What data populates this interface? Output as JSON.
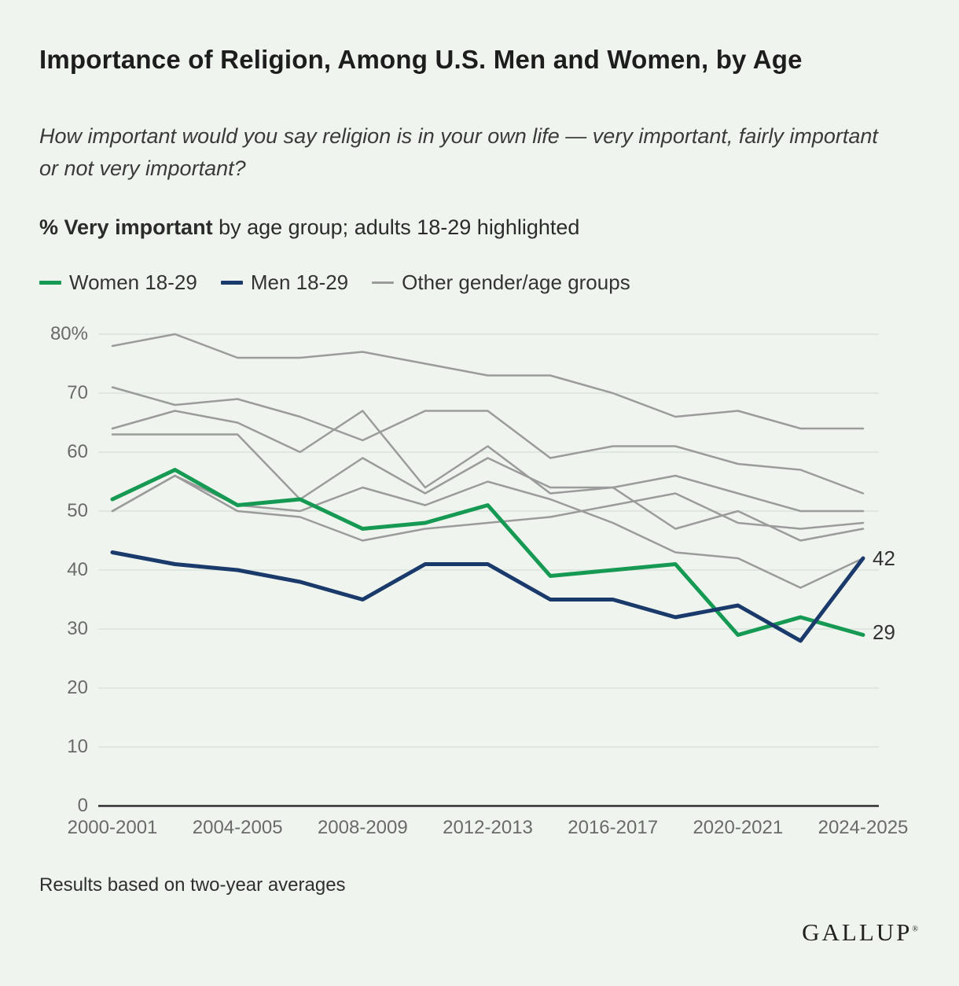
{
  "header": {
    "title": "Importance of Religion, Among U.S. Men and Women, by Age",
    "subtitle": "How important would you say religion is in your own life — very important, fairly important or not very important?",
    "section_label_bold": "% Very important",
    "section_label_rest": " by age group; adults 18-29 highlighted"
  },
  "legend": {
    "items": [
      {
        "label": "Women 18-29",
        "color": "#169a53",
        "thick": true
      },
      {
        "label": "Men 18-29",
        "color": "#1a3a6b",
        "thick": true
      },
      {
        "label": "Other gender/age groups",
        "color": "#9b9b9b",
        "thick": false
      }
    ]
  },
  "chart_data": {
    "type": "line",
    "x": [
      "2000-2001",
      "2002-2003",
      "2004-2005",
      "2006-2007",
      "2008-2009",
      "2010-2011",
      "2012-2013",
      "2014-2015",
      "2016-2017",
      "2018-2019",
      "2020-2021",
      "2022-2023",
      "2024-2025"
    ],
    "x_tick_labels_shown": [
      "2000-2001",
      "2004-2005",
      "2008-2009",
      "2012-2013",
      "2016-2017",
      "2020-2021",
      "2024-2025"
    ],
    "ylabel": "% Very important",
    "ylim": [
      0,
      80
    ],
    "y_ticks": [
      0,
      10,
      20,
      30,
      40,
      50,
      60,
      70,
      80
    ],
    "y_tick_top_label": "80%",
    "grid": "horizontal",
    "series": [
      {
        "name": "Women 18-29",
        "color": "#169a53",
        "width": 5,
        "values": [
          52,
          57,
          51,
          52,
          47,
          48,
          51,
          39,
          40,
          41,
          29,
          32,
          29
        ]
      },
      {
        "name": "Men 18-29",
        "color": "#1a3a6b",
        "width": 5,
        "values": [
          43,
          41,
          40,
          38,
          35,
          41,
          41,
          35,
          35,
          32,
          34,
          28,
          42
        ]
      },
      {
        "name": "Other gender/age group 1",
        "color": "#9b9b9b",
        "width": 2.5,
        "values": [
          78,
          80,
          76,
          76,
          77,
          75,
          73,
          73,
          70,
          66,
          67,
          64,
          64
        ]
      },
      {
        "name": "Other gender/age group 2",
        "color": "#9b9b9b",
        "width": 2.5,
        "values": [
          71,
          68,
          69,
          66,
          62,
          67,
          67,
          59,
          61,
          61,
          58,
          57,
          53
        ]
      },
      {
        "name": "Other gender/age group 3",
        "color": "#9b9b9b",
        "width": 2.5,
        "values": [
          64,
          67,
          65,
          60,
          67,
          54,
          61,
          53,
          54,
          56,
          53,
          50,
          50
        ]
      },
      {
        "name": "Other gender/age group 4",
        "color": "#9b9b9b",
        "width": 2.5,
        "values": [
          63,
          63,
          63,
          52,
          59,
          53,
          59,
          54,
          54,
          47,
          50,
          45,
          47
        ]
      },
      {
        "name": "Other gender/age group 5",
        "color": "#9b9b9b",
        "width": 2.5,
        "values": [
          50,
          56,
          51,
          50,
          54,
          51,
          55,
          52,
          48,
          43,
          42,
          37,
          42
        ]
      },
      {
        "name": "Other gender/age group 6",
        "color": "#9b9b9b",
        "width": 2.5,
        "values": [
          50,
          56,
          50,
          49,
          45,
          47,
          48,
          49,
          51,
          53,
          48,
          47,
          48
        ]
      }
    ],
    "end_labels": [
      {
        "text": "42",
        "series": "Men 18-29",
        "value": 42
      },
      {
        "text": "29",
        "series": "Women 18-29",
        "value": 29
      }
    ],
    "legend_position": "top"
  },
  "footer": {
    "note": "Results based on two-year averages",
    "logo": "GALLUP",
    "logo_mark": "®"
  }
}
